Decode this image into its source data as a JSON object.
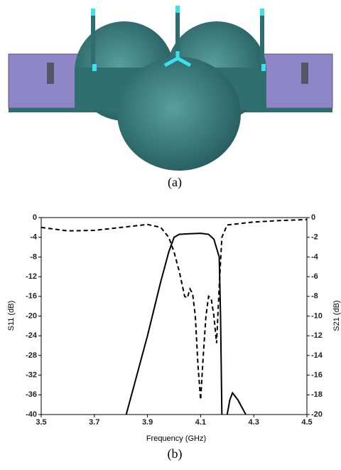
{
  "figure_a": {
    "caption": "(a)"
  },
  "chart_data": {
    "type": "line",
    "caption": "(b)",
    "x_label": "Frequency (GHz)",
    "y_label": "S11 (dB)",
    "y2_label": "S21 (dB)",
    "xlim": [
      3.5,
      4.5
    ],
    "xticks": [
      3.5,
      3.7,
      3.9,
      4.1,
      4.3,
      4.5
    ],
    "ylim": [
      -40,
      0
    ],
    "yticks": [
      0,
      -4,
      -8,
      -12,
      -16,
      -20,
      -24,
      -28,
      -32,
      -36,
      -40
    ],
    "y2lim": [
      -20,
      0
    ],
    "y2ticks": [
      0,
      -2,
      -4,
      -6,
      -8,
      -10,
      -12,
      -14,
      -16,
      -18,
      -20
    ],
    "series": [
      {
        "color": "#000000",
        "dash": true,
        "axis": "y",
        "x": [
          3.5,
          3.6,
          3.7,
          3.8,
          3.9,
          3.95,
          3.98,
          4.0,
          4.02,
          4.04,
          4.05,
          4.06,
          4.07,
          4.08,
          4.09,
          4.1,
          4.11,
          4.12,
          4.13,
          4.14,
          4.15,
          4.16,
          4.17,
          4.18,
          4.2,
          4.3,
          4.4,
          4.5
        ],
        "values": [
          -2,
          -2.7,
          -2.6,
          -2,
          -1.4,
          -2,
          -4,
          -7,
          -11,
          -16,
          -16.3,
          -14.5,
          -15.5,
          -20,
          -30,
          -37,
          -28,
          -20,
          -16,
          -16.5,
          -20,
          -25.5,
          -14,
          -4,
          -1.5,
          -0.9,
          -0.6,
          -0.4
        ]
      },
      {
        "color": "#000000",
        "dash": false,
        "axis": "y2",
        "x": [
          3.82,
          3.85,
          3.9,
          3.95,
          3.98,
          4.0,
          4.02,
          4.05,
          4.1,
          4.13,
          4.15,
          4.17,
          4.175,
          4.18,
          4.19,
          4.2,
          4.21,
          4.22,
          4.24,
          4.27
        ],
        "values": [
          -20,
          -17,
          -12,
          -6.5,
          -3.5,
          -2,
          -1.7,
          -1.65,
          -1.6,
          -1.7,
          -2.2,
          -4,
          -10,
          -20,
          null,
          -20,
          -18.5,
          -17.8,
          -18.5,
          -20
        ]
      }
    ]
  }
}
